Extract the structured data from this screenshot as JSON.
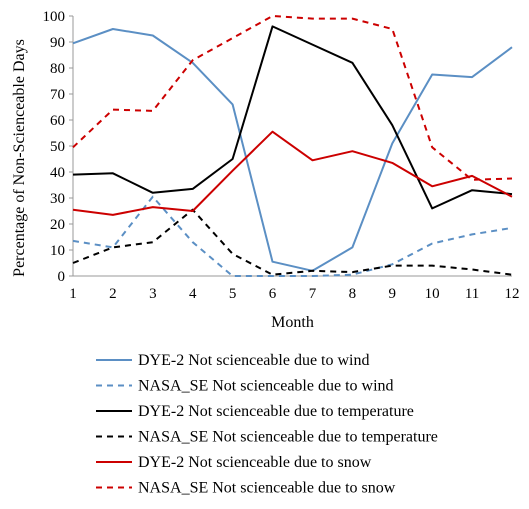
{
  "chart_data": {
    "type": "line",
    "xlabel": "Month",
    "ylabel": "Percentage of  Non-Scienceable Days",
    "x": [
      1,
      2,
      3,
      4,
      5,
      6,
      7,
      8,
      9,
      10,
      11,
      12
    ],
    "xticks": [
      "1",
      "2",
      "3",
      "4",
      "5",
      "6",
      "7",
      "8",
      "9",
      "10",
      "11",
      "12"
    ],
    "ylim": [
      0,
      100
    ],
    "yticks": [
      "0",
      "10",
      "20",
      "30",
      "40",
      "50",
      "60",
      "70",
      "80",
      "90",
      "100"
    ],
    "grid": false,
    "legend_position": "bottom",
    "series": [
      {
        "name": "DYE-2 Not scienceable due to wind",
        "color": "#5b8fc4",
        "dashed": false,
        "values": [
          89.5,
          95,
          92.5,
          82,
          66,
          5.5,
          2,
          11,
          51,
          77.5,
          76.5,
          88
        ]
      },
      {
        "name": "NASA_SE Not scienceable due to wind",
        "color": "#5b8fc4",
        "dashed": true,
        "values": [
          13.5,
          11,
          30.5,
          13,
          0,
          0,
          0,
          0.5,
          4.5,
          12.5,
          16,
          18.5
        ]
      },
      {
        "name": "DYE-2 Not scienceable due to temperature",
        "color": "#000000",
        "dashed": false,
        "values": [
          39,
          39.5,
          32,
          33.5,
          45,
          96,
          89,
          82,
          58,
          26,
          33,
          31.5
        ]
      },
      {
        "name": "NASA_SE Not scienceable due to temperature",
        "color": "#000000",
        "dashed": true,
        "values": [
          5,
          11,
          13,
          25.5,
          8.5,
          0.5,
          2,
          1.5,
          4,
          4,
          2.5,
          0.5
        ]
      },
      {
        "name": "DYE-2 Not scienceable due to snow",
        "color": "#cc0000",
        "dashed": false,
        "values": [
          25.5,
          23.5,
          26.5,
          25,
          40.5,
          55.5,
          44.5,
          48,
          43.5,
          34.5,
          38.5,
          30.5
        ]
      },
      {
        "name": "NASA_SE Not scienceable due to snow",
        "color": "#cc0000",
        "dashed": true,
        "values": [
          49.5,
          64,
          63.5,
          83,
          91.5,
          100,
          99,
          99,
          95,
          49.5,
          37,
          37.5
        ]
      }
    ]
  }
}
